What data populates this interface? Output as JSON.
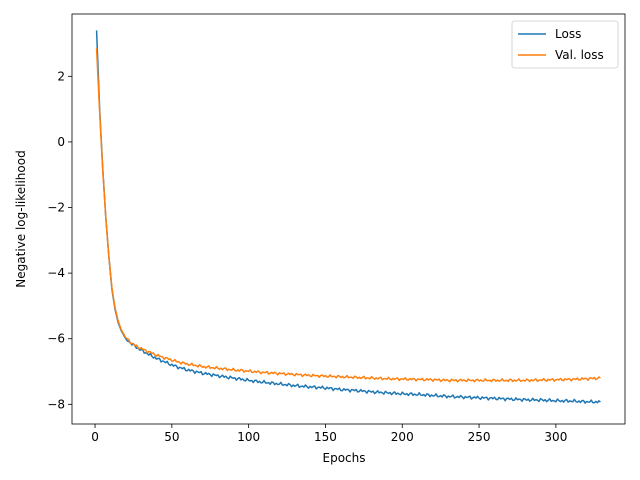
{
  "chart_data": {
    "type": "line",
    "title": "",
    "xlabel": "Epochs",
    "ylabel": "Negative log-likelihood",
    "xlim": [
      -15,
      345
    ],
    "ylim": [
      -8.6,
      3.9
    ],
    "x_ticks": [
      0,
      50,
      100,
      150,
      200,
      250,
      300
    ],
    "y_ticks": [
      -8,
      -6,
      -4,
      -2,
      0,
      2
    ],
    "y_tick_labels": [
      "−8",
      "−6",
      "−4",
      "−2",
      "0",
      "2"
    ],
    "grid": false,
    "legend": {
      "position": "top-right"
    },
    "series": [
      {
        "name": "Loss",
        "color": "#1f77b4",
        "points": [
          [
            1,
            3.4
          ],
          [
            3,
            1.0
          ],
          [
            5,
            -0.8
          ],
          [
            7,
            -2.3
          ],
          [
            9,
            -3.5
          ],
          [
            11,
            -4.5
          ],
          [
            13,
            -5.1
          ],
          [
            15,
            -5.5
          ],
          [
            17,
            -5.75
          ],
          [
            20,
            -6.0
          ],
          [
            25,
            -6.2
          ],
          [
            30,
            -6.35
          ],
          [
            35,
            -6.48
          ],
          [
            40,
            -6.6
          ],
          [
            45,
            -6.7
          ],
          [
            50,
            -6.8
          ],
          [
            55,
            -6.88
          ],
          [
            60,
            -6.95
          ],
          [
            70,
            -7.05
          ],
          [
            80,
            -7.13
          ],
          [
            90,
            -7.2
          ],
          [
            100,
            -7.27
          ],
          [
            110,
            -7.33
          ],
          [
            120,
            -7.38
          ],
          [
            130,
            -7.43
          ],
          [
            140,
            -7.47
          ],
          [
            150,
            -7.5
          ],
          [
            160,
            -7.55
          ],
          [
            170,
            -7.58
          ],
          [
            180,
            -7.62
          ],
          [
            190,
            -7.65
          ],
          [
            200,
            -7.68
          ],
          [
            210,
            -7.7
          ],
          [
            220,
            -7.73
          ],
          [
            230,
            -7.76
          ],
          [
            240,
            -7.78
          ],
          [
            250,
            -7.8
          ],
          [
            260,
            -7.82
          ],
          [
            270,
            -7.84
          ],
          [
            280,
            -7.86
          ],
          [
            290,
            -7.87
          ],
          [
            300,
            -7.89
          ],
          [
            310,
            -7.9
          ],
          [
            320,
            -7.92
          ],
          [
            329,
            -7.93
          ]
        ]
      },
      {
        "name": "Val. loss",
        "color": "#ff7f0e",
        "points": [
          [
            1,
            2.85
          ],
          [
            3,
            0.9
          ],
          [
            5,
            -0.85
          ],
          [
            7,
            -2.3
          ],
          [
            9,
            -3.5
          ],
          [
            11,
            -4.45
          ],
          [
            13,
            -5.05
          ],
          [
            15,
            -5.45
          ],
          [
            17,
            -5.72
          ],
          [
            20,
            -5.97
          ],
          [
            25,
            -6.18
          ],
          [
            30,
            -6.3
          ],
          [
            35,
            -6.4
          ],
          [
            40,
            -6.5
          ],
          [
            45,
            -6.58
          ],
          [
            50,
            -6.65
          ],
          [
            55,
            -6.72
          ],
          [
            60,
            -6.77
          ],
          [
            70,
            -6.85
          ],
          [
            80,
            -6.9
          ],
          [
            90,
            -6.95
          ],
          [
            100,
            -6.99
          ],
          [
            110,
            -7.03
          ],
          [
            120,
            -7.06
          ],
          [
            130,
            -7.09
          ],
          [
            140,
            -7.12
          ],
          [
            150,
            -7.14
          ],
          [
            160,
            -7.16
          ],
          [
            170,
            -7.18
          ],
          [
            180,
            -7.2
          ],
          [
            190,
            -7.22
          ],
          [
            200,
            -7.23
          ],
          [
            210,
            -7.24
          ],
          [
            220,
            -7.25
          ],
          [
            230,
            -7.27
          ],
          [
            240,
            -7.27
          ],
          [
            250,
            -7.27
          ],
          [
            260,
            -7.27
          ],
          [
            270,
            -7.27
          ],
          [
            280,
            -7.27
          ],
          [
            290,
            -7.26
          ],
          [
            300,
            -7.25
          ],
          [
            310,
            -7.24
          ],
          [
            320,
            -7.22
          ],
          [
            329,
            -7.2
          ]
        ]
      }
    ]
  }
}
